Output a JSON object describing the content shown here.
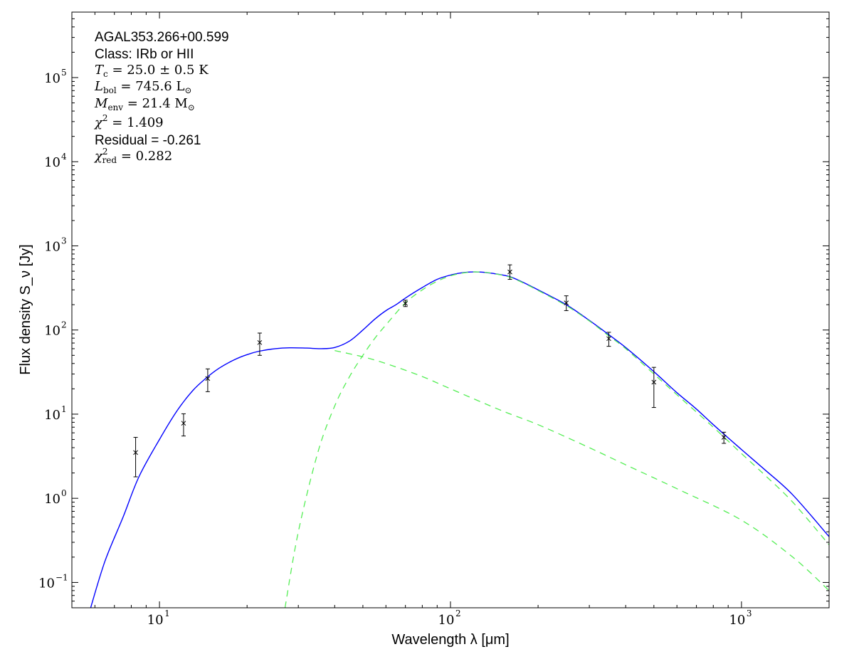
{
  "chart_data": {
    "type": "scatter",
    "xscale": "log",
    "yscale": "log",
    "xlim": [
      5,
      2000
    ],
    "ylim": [
      0.05,
      600000
    ],
    "xlabel": "Wavelength λ [μm]",
    "ylabel": "Flux density S_ν [Jy]",
    "grid": false,
    "x_ticks": [
      {
        "value": 10,
        "base": "10",
        "exp": "1"
      },
      {
        "value": 100,
        "base": "10",
        "exp": "2"
      },
      {
        "value": 1000,
        "base": "10",
        "exp": "3"
      }
    ],
    "y_ticks": [
      {
        "value": 0.1,
        "base": "10",
        "exp": "−1"
      },
      {
        "value": 1,
        "base": "10",
        "exp": "0"
      },
      {
        "value": 10,
        "base": "10",
        "exp": "1"
      },
      {
        "value": 100,
        "base": "10",
        "exp": "2"
      },
      {
        "value": 1000,
        "base": "10",
        "exp": "3"
      },
      {
        "value": 10000,
        "base": "10",
        "exp": "4"
      },
      {
        "value": 100000,
        "base": "10",
        "exp": "5"
      }
    ],
    "annotations": {
      "source": "AGAL353.266+00.599",
      "class_line": "Class: IRb or HII",
      "tc": {
        "sym": "T",
        "sub": "c",
        "rest": " = 25.0 ± 0.5 K"
      },
      "lbol": {
        "sym": "L",
        "sub": "bol",
        "rest": " = 745.6 L",
        "rest_sub": "⊙"
      },
      "menv": {
        "sym": "M",
        "sub": "env",
        "rest": " = 21.4 M",
        "rest_sub": "⊙"
      },
      "chi2": {
        "sym": "χ",
        "sup": "2",
        "rest": " = 1.409"
      },
      "residual": "Residual = -0.261",
      "chi2red": {
        "sym": "χ",
        "sup": "2",
        "sub": "red",
        "rest": " = 0.282"
      }
    },
    "points": [
      {
        "x": 8.28,
        "y": 3.5,
        "ylo": 1.8,
        "yhi": 5.3
      },
      {
        "x": 12.1,
        "y": 7.8,
        "ylo": 5.5,
        "yhi": 10.1
      },
      {
        "x": 14.65,
        "y": 26.5,
        "ylo": 18.5,
        "yhi": 34.5
      },
      {
        "x": 22.1,
        "y": 71,
        "ylo": 50,
        "yhi": 92
      },
      {
        "x": 70,
        "y": 207,
        "ylo": 190,
        "yhi": 226
      },
      {
        "x": 160,
        "y": 490,
        "ylo": 400,
        "yhi": 595
      },
      {
        "x": 250,
        "y": 210,
        "ylo": 170,
        "yhi": 255
      },
      {
        "x": 350,
        "y": 79,
        "ylo": 64,
        "yhi": 94
      },
      {
        "x": 500,
        "y": 24,
        "ylo": 12,
        "yhi": 36
      },
      {
        "x": 870,
        "y": 5.3,
        "ylo": 4.5,
        "yhi": 6.1
      }
    ],
    "series": [
      {
        "style": "solid",
        "color": "#0000ff",
        "x": [
          5.8,
          6.5,
          7.5,
          8.5,
          10,
          11.5,
          13,
          14.5,
          16,
          18,
          20,
          22,
          25,
          28,
          32,
          36,
          40,
          45,
          50,
          55,
          60,
          65,
          70,
          80,
          90,
          100,
          110,
          120,
          130,
          140,
          160,
          180,
          200,
          250,
          300,
          350,
          400,
          500,
          600,
          700,
          800,
          1000,
          1200,
          1500,
          2000
        ],
        "y": [
          0.05,
          0.18,
          0.6,
          1.8,
          5.0,
          11.0,
          19.0,
          27.0,
          35.0,
          44.0,
          51.0,
          56.0,
          60.0,
          61.5,
          61.0,
          60.0,
          62.0,
          74.0,
          100.0,
          135.0,
          170.0,
          200.0,
          240.0,
          320.0,
          400.0,
          450.0,
          480.0,
          490.0,
          485.0,
          470.0,
          430.0,
          360.0,
          300.0,
          200.0,
          130.0,
          88.0,
          62.0,
          32.0,
          18.0,
          11.5,
          7.5,
          3.8,
          2.2,
          1.1,
          0.35
        ]
      },
      {
        "style": "dashed",
        "color": "#55ee55",
        "x": [
          40,
          50,
          60,
          80,
          100,
          150,
          200,
          300,
          400,
          600,
          1000,
          1500,
          2000
        ],
        "y": [
          57.0,
          48.0,
          40.0,
          28.0,
          20.0,
          11.0,
          7.5,
          4.0,
          2.5,
          1.3,
          0.55,
          0.2,
          0.08
        ]
      },
      {
        "style": "dashed",
        "color": "#55ee55",
        "x": [
          27,
          30,
          35,
          40,
          45,
          50,
          55,
          60,
          70,
          80,
          90,
          100,
          110,
          120,
          130,
          140,
          160,
          180,
          200,
          250,
          300,
          350,
          400,
          500,
          600,
          800,
          1000,
          1200,
          1500,
          2000
        ],
        "y": [
          0.05,
          0.4,
          3.5,
          12.5,
          28.0,
          50.0,
          80.0,
          115.0,
          210.0,
          300.0,
          380.0,
          440.0,
          475.0,
          490.0,
          485.0,
          470.0,
          425.0,
          355.0,
          295.0,
          195.0,
          128.0,
          85.0,
          60.0,
          30.0,
          17.0,
          7.0,
          3.4,
          1.9,
          0.9,
          0.28
        ]
      }
    ]
  }
}
